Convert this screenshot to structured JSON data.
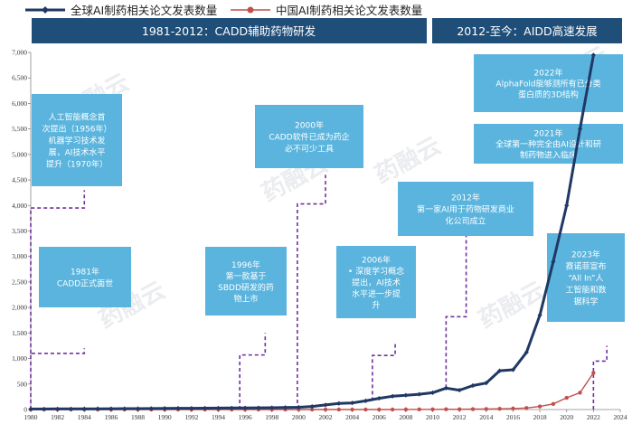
{
  "chart_data": {
    "type": "line",
    "x": [
      1980,
      1981,
      1982,
      1983,
      1984,
      1985,
      1986,
      1987,
      1988,
      1989,
      1990,
      1991,
      1992,
      1993,
      1994,
      1995,
      1996,
      1997,
      1998,
      1999,
      2000,
      2001,
      2002,
      2003,
      2004,
      2005,
      2006,
      2007,
      2008,
      2009,
      2010,
      2011,
      2012,
      2013,
      2014,
      2015,
      2016,
      2017,
      2018,
      2019,
      2020,
      2021,
      2022
    ],
    "series": [
      {
        "name": "全球AI制药相关论文发表数量",
        "color": "#1f3864",
        "values": [
          10,
          10,
          12,
          12,
          14,
          15,
          16,
          17,
          18,
          20,
          22,
          24,
          25,
          27,
          28,
          30,
          32,
          34,
          36,
          40,
          45,
          60,
          90,
          120,
          130,
          170,
          220,
          260,
          280,
          300,
          330,
          420,
          380,
          470,
          520,
          760,
          780,
          1120,
          1850,
          2900,
          4000,
          5500,
          6950
        ]
      },
      {
        "name": "中国AI制药相关论文发表数量",
        "color": "#c0504d",
        "values": [
          0,
          0,
          0,
          0,
          0,
          0,
          0,
          0,
          0,
          0,
          0,
          0,
          0,
          0,
          0,
          0,
          0,
          0,
          0,
          0,
          0,
          0,
          0,
          0,
          0,
          0,
          0,
          0,
          2,
          3,
          4,
          5,
          6,
          8,
          10,
          15,
          20,
          30,
          60,
          110,
          230,
          330,
          720
        ]
      }
    ],
    "yticks": [
      "0",
      "500",
      "1,000",
      "1,500",
      "2,000",
      "2,500",
      "3,000",
      "3,500",
      "4,000",
      "4,500",
      "5,000",
      "5,500",
      "6,000",
      "6,500",
      "7,000"
    ],
    "xticks": [
      "1980",
      "1982",
      "1984",
      "1986",
      "1988",
      "1990",
      "1992",
      "1994",
      "1996",
      "1998",
      "2000",
      "2002",
      "2004",
      "2006",
      "2008",
      "2010",
      "2012",
      "2014",
      "2016",
      "2018",
      "2020",
      "2022",
      "2024"
    ],
    "ylim": [
      0,
      7000
    ],
    "xlim": [
      1980,
      2024
    ],
    "grid": false
  },
  "banners": {
    "left": "1981-2012：CADD辅助药物研发",
    "right": "2012-至今：AIDD高速发展"
  },
  "annotations": [
    {
      "year": 1981,
      "lines": [
        "1981年",
        "CADD正式面世"
      ],
      "color": "#5ab4dd"
    },
    {
      "year": 1956,
      "lines": [
        "人工智能概念首",
        "次提出（1956年）",
        "机器学习技术发",
        "展，AI技术水平",
        "提升（1970年）"
      ],
      "color": "#5ab4dd"
    },
    {
      "year": 1996,
      "lines": [
        "1996年",
        "第一款基于",
        "SBDD研发的药",
        "物上市"
      ],
      "color": "#5ab4dd"
    },
    {
      "year": 2000,
      "lines": [
        "2000年",
        "CADD软件已成为药企",
        "必不可少工具"
      ],
      "color": "#5ab4dd"
    },
    {
      "year": 2006,
      "lines": [
        "2006年",
        "•   深度学习概念",
        "提出，AI技术",
        "水平进一步提",
        "升"
      ],
      "color": "#5ab4dd"
    },
    {
      "year": 2012,
      "lines": [
        "2012年",
        "第一家AI用于药物研发商业",
        "化公司成立"
      ],
      "color": "#5ab4dd"
    },
    {
      "year": 2022,
      "lines": [
        "2022年",
        "AlphaFold能够测所有已分类",
        "蛋白质的3D结构"
      ],
      "color": "#5ab4dd"
    },
    {
      "year": 2021,
      "lines": [
        "2021年",
        "全球第一种完全由AI设计和研",
        "制药物进入临床"
      ],
      "color": "#5ab4dd"
    },
    {
      "year": 2023,
      "lines": [
        "2023年",
        "赛诺菲宣布",
        "“All In”人",
        "工智能和数",
        "据科学"
      ],
      "color": "#5ab4dd"
    }
  ],
  "watermark": "药融云"
}
